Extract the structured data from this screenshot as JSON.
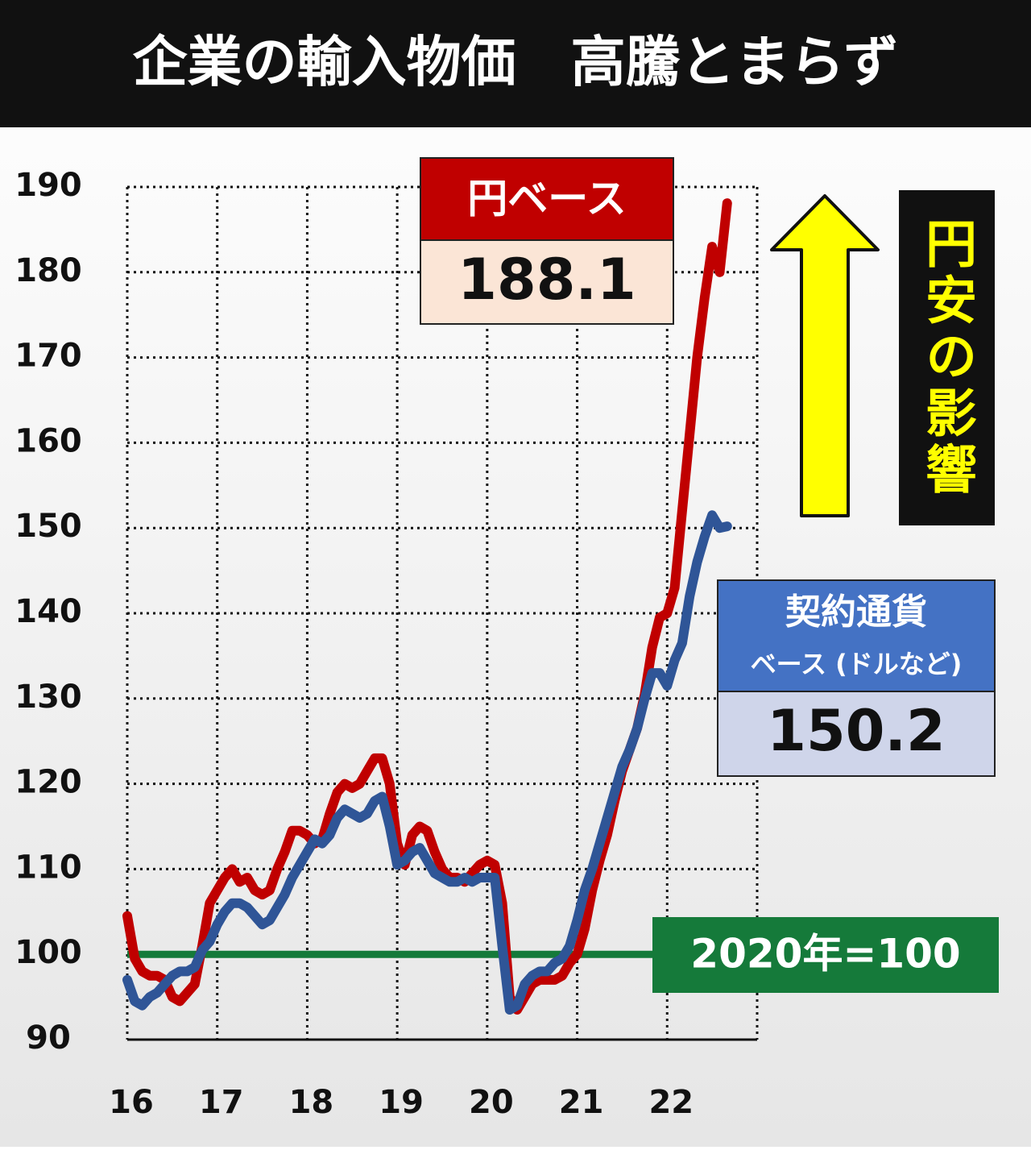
{
  "chart_data": {
    "type": "line",
    "title": "企業の輸入物価　高騰とまらず",
    "categories": [
      "16",
      null,
      null,
      null,
      null,
      null,
      null,
      null,
      null,
      null,
      null,
      null,
      "17",
      null,
      null,
      null,
      null,
      null,
      null,
      null,
      null,
      null,
      null,
      null,
      "18",
      null,
      null,
      null,
      null,
      null,
      null,
      null,
      null,
      null,
      null,
      null,
      "19",
      null,
      null,
      null,
      null,
      null,
      null,
      null,
      null,
      null,
      null,
      null,
      "20",
      null,
      null,
      null,
      null,
      null,
      null,
      null,
      null,
      null,
      null,
      null,
      "21",
      null,
      null,
      null,
      null,
      null,
      null,
      null,
      null,
      null,
      null,
      null,
      "22",
      null,
      null,
      null,
      null,
      null,
      null,
      null,
      null,
      null,
      null,
      null,
      null
    ],
    "series": [
      {
        "name": "円ベース",
        "color": "#c00000",
        "values": [
          104.5,
          99.5,
          98,
          97.5,
          97.5,
          97,
          95,
          94.5,
          95.5,
          96.5,
          101,
          106,
          107.5,
          109,
          110,
          108.5,
          109,
          107.5,
          107,
          107.5,
          110,
          112,
          114.5,
          114.5,
          114,
          113,
          113.5,
          116.5,
          119,
          120,
          119.5,
          120,
          121.5,
          123,
          123,
          120,
          113,
          110.5,
          114,
          115,
          114.5,
          112,
          110,
          109,
          109,
          108.5,
          109.5,
          110.5,
          111,
          110.5,
          106,
          95,
          93.5,
          95,
          96.5,
          97,
          97,
          97,
          97.5,
          99,
          100,
          103,
          107.5,
          111,
          114,
          118,
          121.5,
          124,
          126.5,
          130.5,
          136,
          139.5,
          140,
          143,
          152,
          161,
          170,
          177,
          183,
          180,
          188.1,
          null,
          null,
          null,
          null
        ]
      },
      {
        "name": "契約通貨",
        "name_sub": "ベース (ドルなど)",
        "color": "#2f5597",
        "values": [
          97,
          94.5,
          94,
          95,
          95.5,
          96.5,
          97.5,
          98,
          98,
          98.5,
          100.5,
          101.5,
          103.5,
          105,
          106,
          106,
          105.5,
          104.5,
          103.5,
          104,
          105.5,
          107,
          109,
          110.5,
          112,
          113.5,
          113,
          114,
          116,
          117,
          116.5,
          116,
          116.5,
          118,
          118.5,
          115,
          110.5,
          111,
          112,
          112.5,
          111,
          109.5,
          109,
          108.5,
          108.5,
          109,
          108.5,
          109,
          109,
          109,
          101,
          93.5,
          94,
          96.5,
          97.5,
          98,
          98,
          99,
          99.5,
          101,
          104,
          107.5,
          110,
          113,
          116,
          119,
          122,
          124,
          126.5,
          130,
          133,
          133,
          131.5,
          134.5,
          136.5,
          142,
          146,
          149,
          151.5,
          150,
          150.2,
          null,
          null,
          null,
          null
        ]
      }
    ],
    "ylim": [
      90,
      190
    ],
    "yticks": [
      90,
      100,
      110,
      120,
      130,
      140,
      150,
      160,
      170,
      180,
      190
    ],
    "grid": true,
    "reference_line": {
      "value": 100,
      "label": "2020年=100",
      "color": "#157a3a"
    },
    "annotation": "円安の影響"
  }
}
